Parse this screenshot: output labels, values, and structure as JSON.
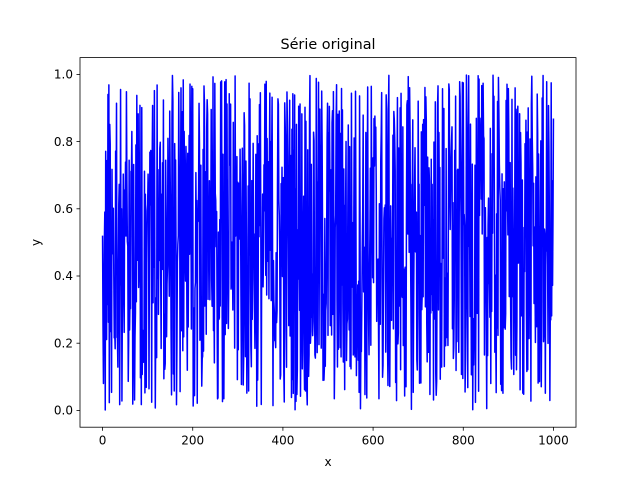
{
  "chart_data": {
    "type": "line",
    "title": "Série original",
    "xlabel": "x",
    "ylabel": "y",
    "xlim": [
      -50,
      1050
    ],
    "ylim": [
      -0.05,
      1.05
    ],
    "xticks": [
      0,
      200,
      400,
      600,
      800,
      1000
    ],
    "xtick_labels": [
      "0",
      "200",
      "400",
      "600",
      "800",
      "1000"
    ],
    "yticks": [
      0.0,
      0.2,
      0.4,
      0.6,
      0.8,
      1.0
    ],
    "ytick_labels": [
      "0.0",
      "0.2",
      "0.4",
      "0.6",
      "0.8",
      "1.0"
    ],
    "grid": false,
    "legend": "none",
    "series": [
      {
        "color": "#0000ff",
        "x": [
          0,
          1000
        ],
        "n_points": 1001,
        "value_range": [
          0.0,
          1.0
        ],
        "first_values": [
          0.52,
          0.25,
          0.08,
          0.31,
          0.5,
          0.59
        ]
      }
    ]
  }
}
